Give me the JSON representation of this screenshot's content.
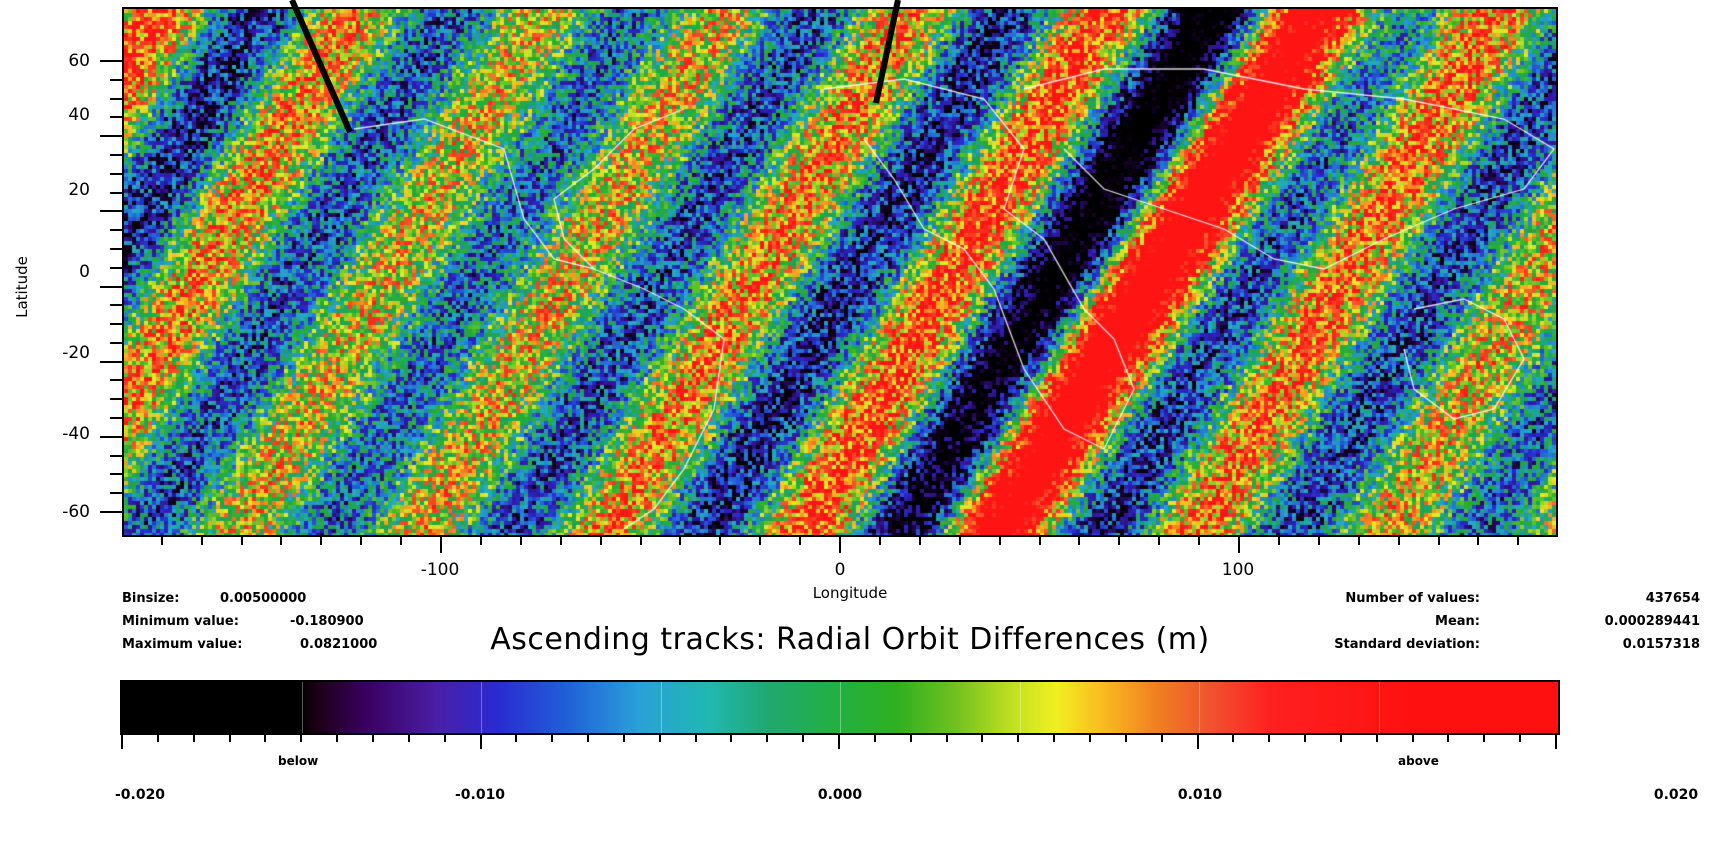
{
  "map": {
    "y_axis_title": "Latitude",
    "x_axis_title": "Longitude",
    "lat_ticks": [
      "60",
      "40",
      "20",
      "0",
      "-20",
      "-40",
      "-60"
    ],
    "lon_ticks": [
      "-100",
      "0",
      "100"
    ],
    "lat_range": [
      -66,
      66
    ],
    "lon_range": [
      -180,
      180
    ]
  },
  "stats": {
    "binsize_label": "Binsize:",
    "binsize_value": "0.00500000",
    "min_label": "Minimum value:",
    "min_value": "-0.180900",
    "max_label": "Maximum value:",
    "max_value": "0.0821000",
    "count_label": "Number of values:",
    "count_value": "437654",
    "mean_label": "Mean:",
    "mean_value": "0.000289441",
    "std_label": "Standard deviation:",
    "std_value": "0.0157318"
  },
  "title": "Ascending tracks: Radial Orbit Differences (m)",
  "colorbar": {
    "ticks": [
      "-0.020",
      "-0.010",
      "0.000",
      "0.010",
      "0.020"
    ],
    "below_label": "below",
    "above_label": "above",
    "range": [
      -0.02,
      0.02
    ]
  },
  "colors": {
    "low": "#000000",
    "dark_blue": "#2a1a9a",
    "cyan": "#2aa0d8",
    "green": "#22b040",
    "yellow": "#f0f020",
    "red": "#ff1a1a",
    "coastline": "#ffffff"
  }
}
